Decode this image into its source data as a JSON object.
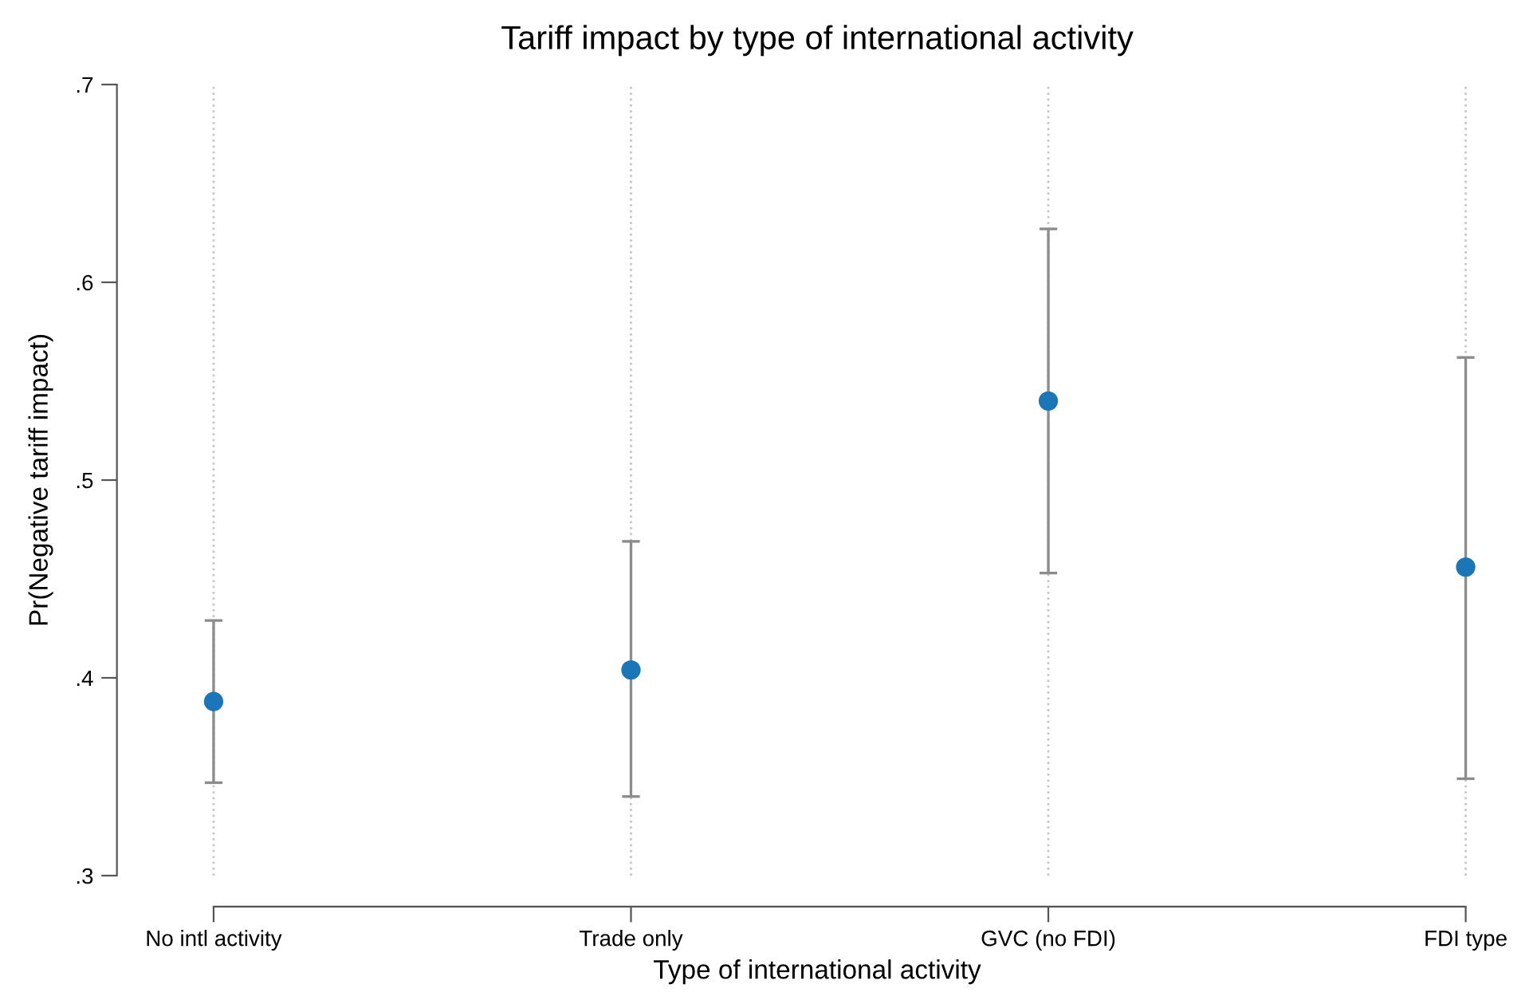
{
  "chart_data": {
    "type": "scatter",
    "title": "Tariff impact by type of international activity",
    "xlabel": "Type of international activity",
    "ylabel": "Pr(Negative tariff impact)",
    "categories": [
      "No intl activity",
      "Trade only",
      "GVC (no FDI)",
      "FDI type"
    ],
    "series": [
      {
        "color": "#1a76b8",
        "values": [
          0.388,
          0.404,
          0.54,
          0.456
        ],
        "errors": [
          [
            0.347,
            0.429
          ],
          [
            0.34,
            0.469
          ],
          [
            0.453,
            0.627
          ],
          [
            0.349,
            0.562
          ]
        ]
      }
    ],
    "ylim": [
      0.3,
      0.7
    ],
    "yticks": [
      {
        "value": 0.3,
        "label": ".3"
      },
      {
        "value": 0.4,
        "label": ".4"
      },
      {
        "value": 0.5,
        "label": ".5"
      },
      {
        "value": 0.6,
        "label": ".6"
      },
      {
        "value": 0.7,
        "label": ".7"
      }
    ],
    "grid": "x",
    "marker": "circle"
  }
}
